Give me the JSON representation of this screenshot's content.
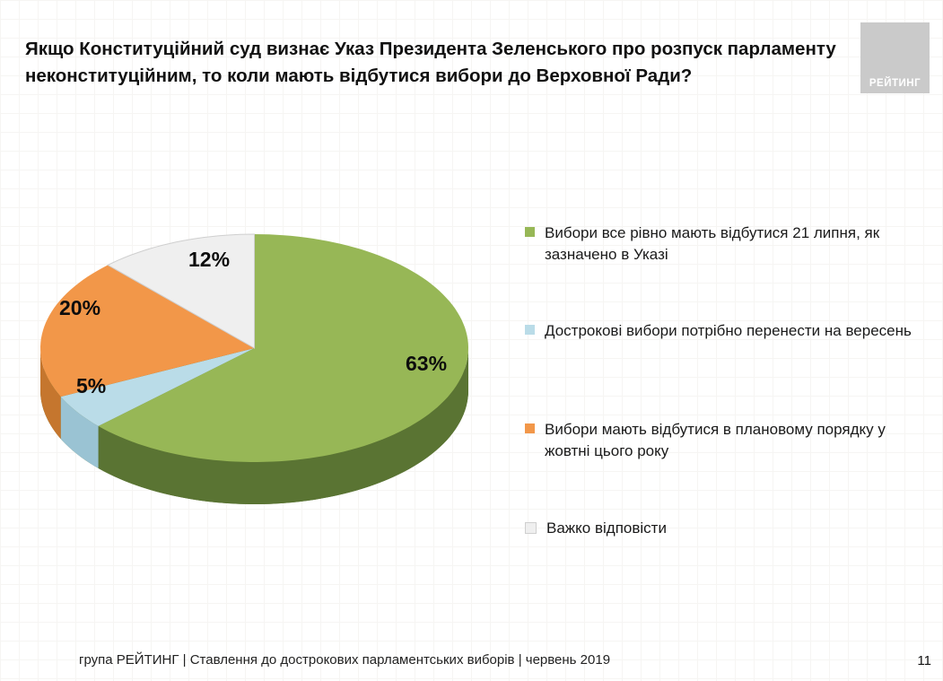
{
  "slide": {
    "title_line1": "Якщо Конституційний суд визнає Указ Президента Зеленського про розпуск парламенту",
    "title_line2": "неконституційним, то коли мають відбутися вибори до Верховної Ради?",
    "logo_text": "РЕЙТИНГ",
    "footer": "група РЕЙТИНГ | Ставлення до дострокових парламентських виборів | червень 2019",
    "page_number": "11"
  },
  "chart_data": {
    "type": "pie",
    "title": "Якщо Конституційний суд визнає Указ Президента Зеленського про розпуск парламенту неконституційним, то коли мають відбутися вибори до Верховної Ради?",
    "effect": "3d",
    "direction": "clockwise",
    "start_angle_deg": 0,
    "legend_position": "right",
    "slices": [
      {
        "label": "Вибори все рівно мають відбутися 21 липня, як зазначено в Указі",
        "value": 63,
        "pct_label": "63%",
        "color": "#97B756",
        "side_color": "#5A7433"
      },
      {
        "label": "Дострокові вибори потрібно перенести на вересень",
        "value": 5,
        "pct_label": "5%",
        "color": "#BADCE8",
        "side_color": "#9AC3D3"
      },
      {
        "label": "Вибори мають відбутися в плановому порядку у жовтні цього року",
        "value": 20,
        "pct_label": "20%",
        "color": "#F29749",
        "side_color": "#C5762E"
      },
      {
        "label": "Важко відповісти",
        "value": 12,
        "pct_label": "12%",
        "color": "#EFEFEF",
        "side_color": "#DCDCDC",
        "border": "#CFCFCF"
      }
    ]
  }
}
